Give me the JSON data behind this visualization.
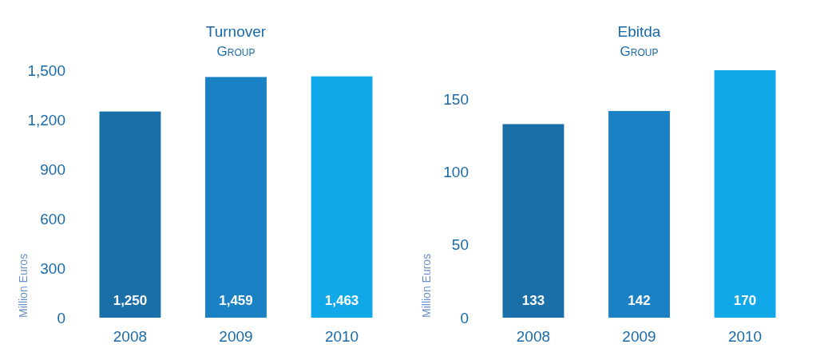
{
  "chart_data": [
    {
      "type": "bar",
      "title": "Turnover",
      "subtitle": "Group",
      "ylabel": "Million Euros",
      "categories": [
        "2008",
        "2009",
        "2010"
      ],
      "values": [
        1250,
        1459,
        1463
      ],
      "value_labels": [
        "1,250",
        "1,459",
        "1,463"
      ],
      "colors": [
        "#1a6fa8",
        "#1a82c4",
        "#10a8e8"
      ],
      "ylim": [
        0,
        1500
      ],
      "yticks": [
        {
          "value": 0,
          "label": "0"
        },
        {
          "value": 300,
          "label": "300"
        },
        {
          "value": 600,
          "label": "600"
        },
        {
          "value": 900,
          "label": "900"
        },
        {
          "value": 1200,
          "label": "1,200"
        },
        {
          "value": 1500,
          "label": "1,500"
        }
      ]
    },
    {
      "type": "bar",
      "title": "Ebitda",
      "subtitle": "Group",
      "ylabel": "Million Euros",
      "categories": [
        "2008",
        "2009",
        "2010"
      ],
      "values": [
        133,
        142,
        170
      ],
      "data_labels": true,
      "colors": [
        "#1a6fa8",
        "#1a82c4",
        "#10a8e8"
      ],
      "ylim": [
        0,
        170
      ],
      "yticks": [
        0,
        50,
        100,
        150
      ]
    }
  ]
}
